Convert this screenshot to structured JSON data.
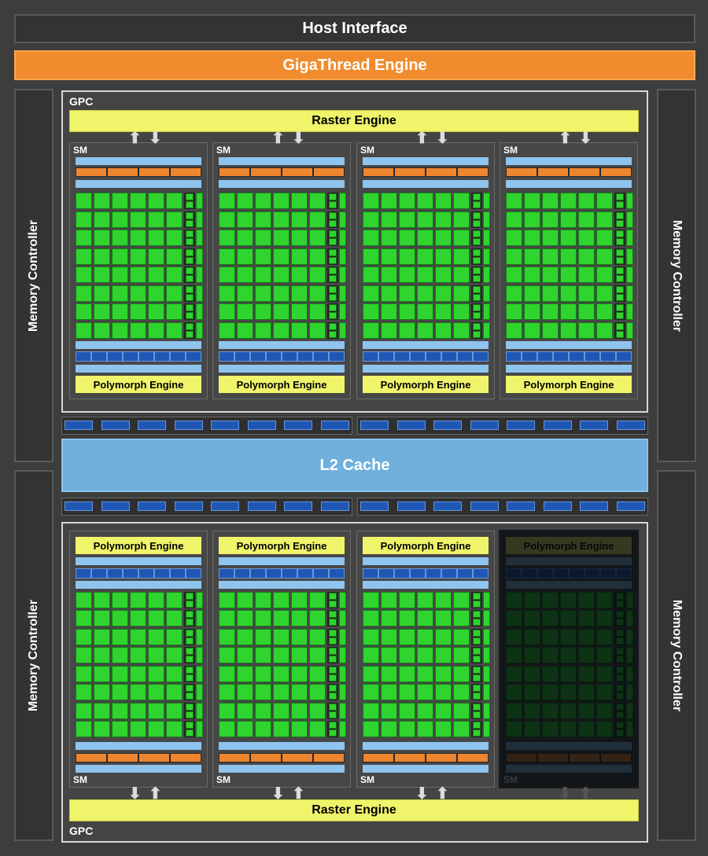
{
  "host_interface": "Host Interface",
  "gigathread_engine": "GigaThread Engine",
  "memory_controller": "Memory Controller",
  "l2_cache": "L2 Cache",
  "gpc": {
    "label": "GPC",
    "raster_engine": "Raster Engine"
  },
  "sm": {
    "label": "SM",
    "polymorph_engine": "Polymorph Engine",
    "cores_per_row": 6,
    "core_rows": 8
  },
  "l2_links_per_strip": 8,
  "colors": {
    "background": "#3d3d3d",
    "core": "#2fd42f",
    "gigathread": "#f08c2e",
    "l2": "#6fb0dd",
    "raster": "#f0f46a",
    "link": "#1f57b4"
  },
  "disabled_sm": "bottom GPC, 4th SM (dimmed)"
}
